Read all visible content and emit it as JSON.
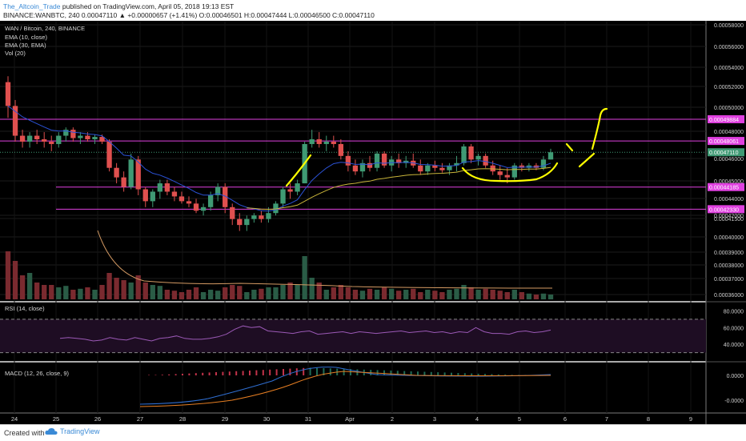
{
  "header": {
    "author": "The_Altcoin_Trade",
    "published": " published on TradingView.com, April 05, 2018 19:13 EST",
    "symbol_line": "BINANCE:WANBTC, 240  0.00047110 ▲ +0.00000657 (+1.41%) O:0.00046501 H:0.00047444 L:0.00046500 C:0.00047110"
  },
  "footer": {
    "created_with": "Created with",
    "brand": "TradingView"
  },
  "chart_data": [
    {
      "type": "candlestick",
      "title": "WAN / Bitcoin, 240, BINANCE",
      "indicators": [
        "EMA (10, close)",
        "EMA (30, EMA)",
        "Vol (20)"
      ],
      "x_ticks": [
        "24",
        "25",
        "26",
        "27",
        "28",
        "29",
        "30",
        "31",
        "Apr",
        "2",
        "3",
        "4",
        "5",
        "6",
        "7",
        "8",
        "9"
      ],
      "y_ticks": [
        "0.00058000",
        "0.00056000",
        "0.00054000",
        "0.00052000",
        "0.00050000",
        "0.00048000",
        "0.00046000",
        "0.00045000",
        "0.00044000",
        "0.00042000",
        "0.00041500",
        "0.00040000",
        "0.00039000",
        "0.00038000",
        "0.00037000",
        "0.00036000"
      ],
      "highlighted_levels": [
        {
          "label": "0.00049884",
          "value": 0.00049884
        },
        {
          "label": "0.00048061",
          "value": 0.00048061
        },
        {
          "label": "0.00047110",
          "value": 0.0004711
        },
        {
          "label": "0.00044185",
          "value": 0.00044185
        },
        {
          "label": "0.00042330",
          "value": 0.0004233
        }
      ],
      "colors": {
        "up": "#3f9a74",
        "down": "#e0504f",
        "level": "#e040e0",
        "ema10": "#2b52d6",
        "ema30": "#c9b53a",
        "marker": "#ffff00",
        "price_tag": "#3f9a74"
      },
      "candles": [
        [
          0.00053,
          0.000535,
          0.0005,
          0.00051
        ],
        [
          0.00051,
          0.000515,
          0.00048,
          0.000485
        ],
        [
          0.000485,
          0.00049,
          0.000475,
          0.00048
        ],
        [
          0.00048,
          0.000488,
          0.000475,
          0.000485
        ],
        [
          0.000485,
          0.00049,
          0.000478,
          0.000482
        ],
        [
          0.000482,
          0.000488,
          0.000475,
          0.00048
        ],
        [
          0.00048,
          0.000485,
          0.000472,
          0.000478
        ],
        [
          0.000478,
          0.000488,
          0.000475,
          0.000485
        ],
        [
          0.000485,
          0.000492,
          0.00048,
          0.00049
        ],
        [
          0.00049,
          0.000492,
          0.00048,
          0.000483
        ],
        [
          0.000483,
          0.000488,
          0.000478,
          0.000485
        ],
        [
          0.000485,
          0.000488,
          0.00048,
          0.000482
        ],
        [
          0.000482,
          0.000486,
          0.000478,
          0.000484
        ],
        [
          0.000484,
          0.000486,
          0.000478,
          0.00048
        ],
        [
          0.00048,
          0.000482,
          0.000455,
          0.000458
        ],
        [
          0.000458,
          0.000462,
          0.000445,
          0.00045
        ],
        [
          0.00045,
          0.000455,
          0.000438,
          0.000442
        ],
        [
          0.000442,
          0.00047,
          0.00044,
          0.000465
        ],
        [
          0.000465,
          0.000468,
          0.000435,
          0.00044
        ],
        [
          0.00044,
          0.000442,
          0.000425,
          0.00043
        ],
        [
          0.00043,
          0.00044,
          0.000425,
          0.000438
        ],
        [
          0.000438,
          0.000448,
          0.000432,
          0.000445
        ],
        [
          0.000445,
          0.000448,
          0.000435,
          0.000438
        ],
        [
          0.000438,
          0.000442,
          0.00043,
          0.000434
        ],
        [
          0.000434,
          0.000438,
          0.000428,
          0.00043
        ],
        [
          0.00043,
          0.000434,
          0.000425,
          0.000428
        ],
        [
          0.000428,
          0.000432,
          0.00042,
          0.000422
        ],
        [
          0.000422,
          0.000428,
          0.000418,
          0.000425
        ],
        [
          0.000425,
          0.000438,
          0.000422,
          0.000435
        ],
        [
          0.000435,
          0.000445,
          0.00043,
          0.000442
        ],
        [
          0.000442,
          0.000445,
          0.00042,
          0.000425
        ],
        [
          0.000425,
          0.000428,
          0.00041,
          0.000415
        ],
        [
          0.000415,
          0.00042,
          0.000405,
          0.00041
        ],
        [
          0.00041,
          0.000418,
          0.000405,
          0.000415
        ],
        [
          0.000415,
          0.00042,
          0.000412,
          0.000418
        ],
        [
          0.000418,
          0.000422,
          0.000412,
          0.000415
        ],
        [
          0.000415,
          0.000425,
          0.000412,
          0.00042
        ],
        [
          0.00042,
          0.00043,
          0.000418,
          0.000428
        ],
        [
          0.000428,
          0.000442,
          0.000425,
          0.00044
        ],
        [
          0.00044,
          0.000445,
          0.000432,
          0.000438
        ],
        [
          0.000438,
          0.000448,
          0.000435,
          0.000445
        ],
        [
          0.000445,
          0.00048,
          0.000445,
          0.000478
        ],
        [
          0.000478,
          0.00049,
          0.000475,
          0.000482
        ],
        [
          0.000482,
          0.000488,
          0.000475,
          0.000478
        ],
        [
          0.000478,
          0.000485,
          0.000472,
          0.00048
        ],
        [
          0.00048,
          0.000485,
          0.000475,
          0.000478
        ],
        [
          0.000478,
          0.000482,
          0.000465,
          0.000468
        ],
        [
          0.000468,
          0.000472,
          0.000455,
          0.00046
        ],
        [
          0.00046,
          0.000465,
          0.000452,
          0.000455
        ],
        [
          0.000455,
          0.000465,
          0.00045,
          0.000462
        ],
        [
          0.000462,
          0.000468,
          0.000455,
          0.000458
        ],
        [
          0.000458,
          0.000472,
          0.000455,
          0.00047
        ],
        [
          0.00047,
          0.000472,
          0.000458,
          0.00046
        ],
        [
          0.00046,
          0.000468,
          0.000455,
          0.000465
        ],
        [
          0.000465,
          0.00047,
          0.000458,
          0.000462
        ],
        [
          0.000462,
          0.000468,
          0.000458,
          0.000464
        ],
        [
          0.000464,
          0.00047,
          0.000458,
          0.00046
        ],
        [
          0.00046,
          0.000465,
          0.000452,
          0.000455
        ],
        [
          0.000455,
          0.000462,
          0.000452,
          0.00046
        ],
        [
          0.00046,
          0.000464,
          0.000455,
          0.000458
        ],
        [
          0.000458,
          0.000462,
          0.000454,
          0.000456
        ],
        [
          0.000456,
          0.000462,
          0.000452,
          0.00046
        ],
        [
          0.00046,
          0.000468,
          0.000455,
          0.000462
        ],
        [
          0.000462,
          0.000478,
          0.00046,
          0.000476
        ],
        [
          0.000476,
          0.000478,
          0.000462,
          0.000465
        ],
        [
          0.000465,
          0.00047,
          0.00046,
          0.000468
        ],
        [
          0.000468,
          0.00047,
          0.000458,
          0.00046
        ],
        [
          0.00046,
          0.000464,
          0.000452,
          0.000455
        ],
        [
          0.000455,
          0.00046,
          0.000448,
          0.000452
        ],
        [
          0.000452,
          0.000458,
          0.000445,
          0.00045
        ],
        [
          0.00045,
          0.000462,
          0.000448,
          0.00046
        ],
        [
          0.00046,
          0.000462,
          0.000455,
          0.000458
        ],
        [
          0.000458,
          0.000462,
          0.000455,
          0.00046
        ],
        [
          0.00046,
          0.000462,
          0.000456,
          0.000458
        ],
        [
          0.000458,
          0.000468,
          0.000456,
          0.000465
        ],
        [
          0.000465,
          0.000474,
          0.000465,
          0.0004711
        ]
      ],
      "volume": [
        1.0,
        0.8,
        0.5,
        0.55,
        0.35,
        0.3,
        0.3,
        0.25,
        0.28,
        0.2,
        0.22,
        0.25,
        0.2,
        0.3,
        0.55,
        0.45,
        0.4,
        0.35,
        0.5,
        0.35,
        0.3,
        0.28,
        0.2,
        0.18,
        0.15,
        0.2,
        0.25,
        0.15,
        0.2,
        0.18,
        0.25,
        0.3,
        0.28,
        0.15,
        0.2,
        0.22,
        0.25,
        0.25,
        0.3,
        0.35,
        0.3,
        0.9,
        0.45,
        0.35,
        0.2,
        0.25,
        0.3,
        0.25,
        0.2,
        0.18,
        0.22,
        0.2,
        0.25,
        0.22,
        0.18,
        0.2,
        0.22,
        0.15,
        0.2,
        0.18,
        0.15,
        0.2,
        0.22,
        0.3,
        0.25,
        0.2,
        0.22,
        0.2,
        0.18,
        0.15,
        0.2,
        0.15,
        0.12,
        0.1,
        0.12,
        0.1
      ],
      "rsi": {
        "label": "RSI (14, close)",
        "ticks": [
          "80.0000",
          "60.0000",
          "40.0000"
        ],
        "range": [
          20,
          90
        ],
        "bands": [
          70,
          30
        ]
      },
      "macd": {
        "label": "MACD (12, 26, close, 9)",
        "ticks": [
          "0.0000",
          "-0.0000"
        ]
      }
    }
  ]
}
